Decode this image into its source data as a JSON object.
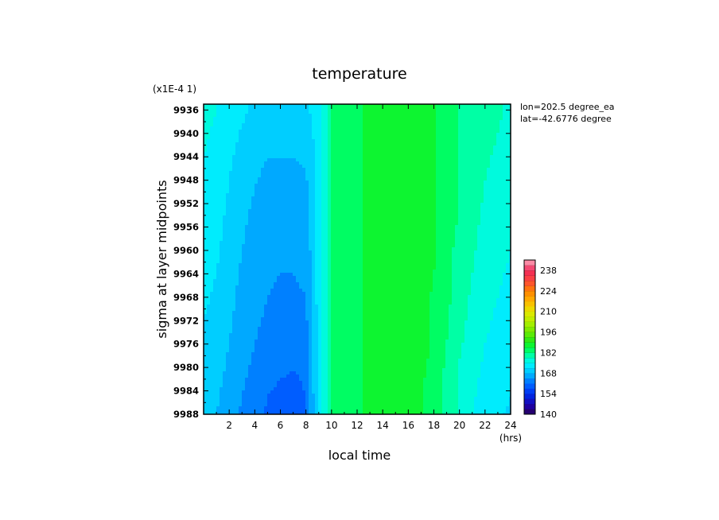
{
  "chart_data": {
    "type": "heatmap",
    "title": "temperature",
    "xlabel": "local time",
    "x_unit": "(hrs)",
    "ylabel": "sigma at layer midpoints",
    "y_scale_note": "(x1E-4 1)",
    "annotations": [
      "lon=202.5 degree_ea",
      "lat=-42.6776 degree"
    ],
    "xlim": [
      0,
      24
    ],
    "ylim": [
      9988,
      9935
    ],
    "x_ticks": [
      2,
      4,
      6,
      8,
      10,
      12,
      14,
      16,
      18,
      20,
      22,
      24
    ],
    "x_tick_labels": [
      "2",
      "4",
      "6",
      "8",
      "10",
      "12",
      "14",
      "16",
      "18",
      "20",
      "22",
      "24"
    ],
    "y_ticks": [
      9936,
      9940,
      9944,
      9948,
      9952,
      9956,
      9960,
      9964,
      9968,
      9972,
      9976,
      9980,
      9984,
      9988
    ],
    "y_tick_labels": [
      "9936",
      "9940",
      "9944",
      "9948",
      "9952",
      "9956",
      "9960",
      "9964",
      "9968",
      "9972",
      "9976",
      "9980",
      "9984",
      "9988"
    ],
    "colorbar": {
      "min": 140,
      "max": 245,
      "step": 3.5,
      "tick_values": [
        140,
        154,
        168,
        182,
        196,
        210,
        224,
        238
      ],
      "tick_labels": [
        "140",
        "154",
        "168",
        "182",
        "196",
        "210",
        "224",
        "238"
      ]
    },
    "x": [
      0,
      1,
      2,
      3,
      4,
      5,
      6,
      7,
      8,
      9,
      10,
      11,
      12,
      13,
      14,
      15,
      16,
      17,
      18,
      19,
      20,
      21,
      22,
      23,
      24
    ],
    "y": [
      9936,
      9944,
      9952,
      9960,
      9968,
      9976,
      9982,
      9988
    ],
    "z": [
      [
        176,
        175,
        173,
        172,
        171,
        170.5,
        170.5,
        170.5,
        171,
        173,
        182,
        184,
        185,
        186,
        187,
        188,
        188,
        187,
        186,
        184,
        182,
        181,
        180,
        179,
        178
      ],
      [
        175,
        174,
        172,
        170.5,
        169,
        168,
        168,
        168,
        168.5,
        173,
        182,
        184,
        185,
        186,
        187,
        188,
        188,
        187,
        186,
        184,
        182,
        181,
        179,
        178,
        177
      ],
      [
        174,
        173,
        171,
        169,
        167.5,
        166.5,
        166,
        166,
        166.5,
        173,
        182,
        184,
        185,
        186,
        187,
        188,
        188,
        187,
        186,
        184,
        182,
        180,
        178,
        177,
        176
      ],
      [
        173,
        172,
        170,
        168,
        166.5,
        165.5,
        165,
        165,
        165.5,
        173,
        182,
        184,
        185,
        186,
        187,
        188,
        188,
        187,
        186,
        183,
        181,
        179,
        177,
        176,
        175
      ],
      [
        172,
        171,
        169,
        167,
        165.5,
        164.5,
        164,
        164,
        164.5,
        173,
        182,
        184,
        185,
        186,
        187,
        188,
        188,
        187,
        185,
        183,
        180,
        178,
        176,
        175,
        174
      ],
      [
        171,
        170,
        168,
        166,
        164.5,
        163.5,
        163,
        162.5,
        163,
        173,
        182,
        184,
        185,
        186,
        187,
        188,
        188,
        187,
        185,
        182,
        179,
        177,
        175,
        174,
        173
      ],
      [
        170,
        169,
        167,
        165,
        163.5,
        161.5,
        161,
        160.5,
        161.5,
        173,
        182,
        184,
        185,
        186,
        187,
        188,
        188,
        186,
        184,
        181,
        178,
        176,
        174,
        173,
        172
      ],
      [
        169,
        168,
        166,
        164,
        162.5,
        160.5,
        160,
        159.5,
        160.5,
        173,
        182,
        184,
        185,
        186,
        187,
        188,
        188,
        186,
        184,
        181,
        178,
        175,
        173,
        172,
        171
      ]
    ]
  }
}
